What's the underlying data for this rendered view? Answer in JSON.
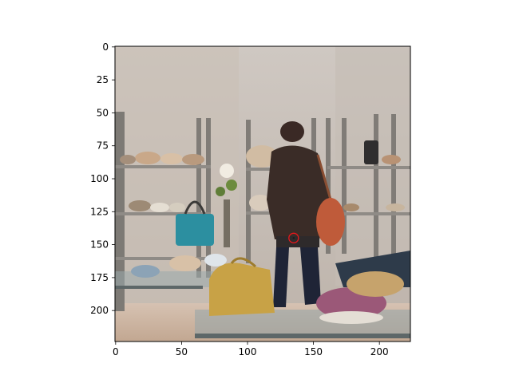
{
  "chart_data": {
    "type": "image",
    "title": "",
    "xlabel": "",
    "ylabel": "",
    "xlim": [
      0,
      224
    ],
    "ylim": [
      224,
      0
    ],
    "x_ticks": [
      0,
      50,
      100,
      150,
      200
    ],
    "y_ticks": [
      0,
      25,
      50,
      75,
      100,
      125,
      150,
      175,
      200
    ],
    "marker": {
      "x": 135,
      "y": 145,
      "shape": "circle",
      "color": "#e8171b"
    },
    "grid": false,
    "image_description_hidden": true
  },
  "colors": {
    "wall": "#c8c0b8",
    "shelf": "#8e8b86",
    "floor": "#cdb8a6",
    "jacket": "#3a2c27",
    "bag": "#bf5b3a",
    "yellow_bag": "#c8a246",
    "teal_bag": "#2c8fa0",
    "marker": "#e8171b"
  }
}
